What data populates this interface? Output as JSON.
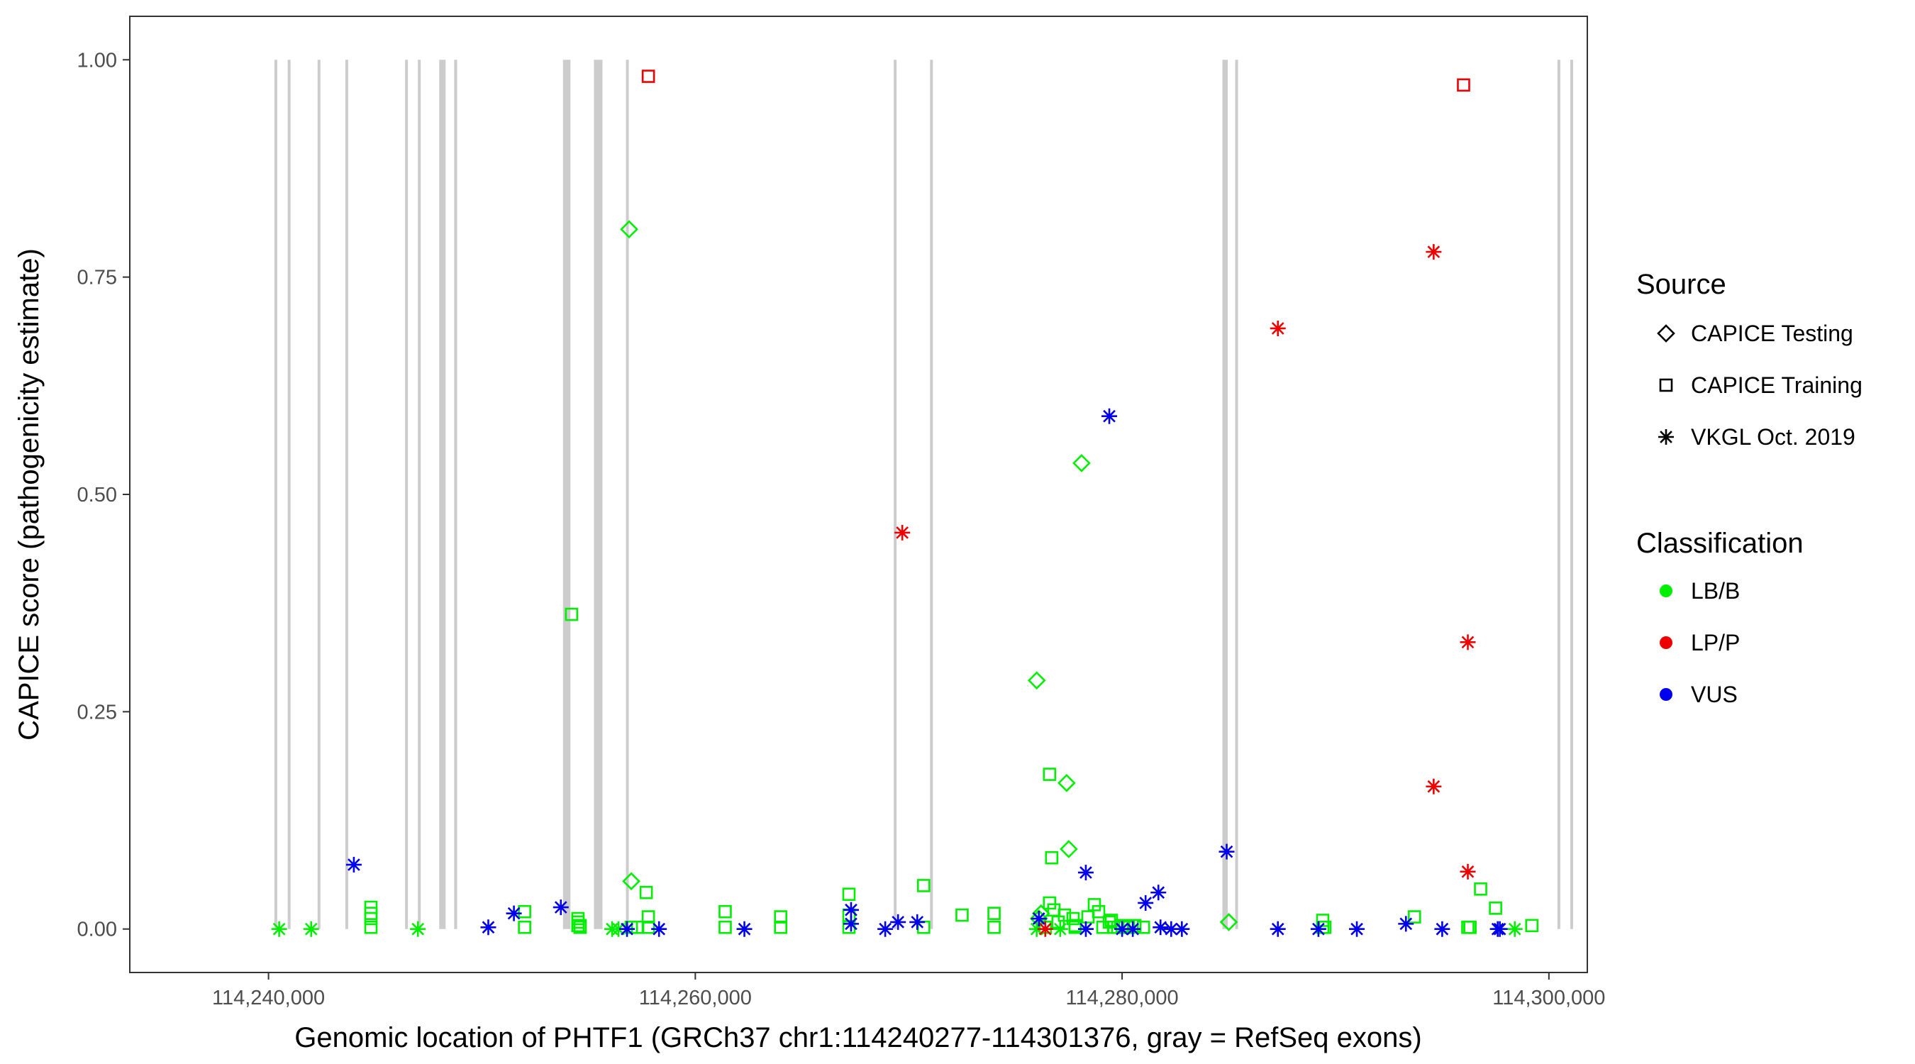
{
  "chart_data": {
    "type": "scatter",
    "title": "",
    "xlabel": "Genomic location of PHTF1 (GRCh37 chr1:114240277-114301376, gray = RefSeq exons)",
    "ylabel": "CAPICE score (pathogenicity estimate)",
    "xlim": [
      114233500,
      114301800
    ],
    "ylim": [
      -0.05,
      1.05
    ],
    "x_ticks": [
      114240000,
      114260000,
      114280000,
      114300000
    ],
    "x_tick_labels": [
      "114,240,000",
      "114,260,000",
      "114,280,000",
      "114,300,000"
    ],
    "y_ticks": [
      0,
      0.25,
      0.5,
      0.75,
      1.0
    ],
    "y_tick_labels": [
      "0.00",
      "0.25",
      "0.50",
      "0.75",
      "1.00"
    ],
    "grid": false,
    "exon_color": "#cccccc",
    "exons": [
      [
        114240277,
        114240377
      ],
      [
        114240900,
        114241000
      ],
      [
        114242300,
        114242420
      ],
      [
        114243600,
        114243720
      ],
      [
        114246400,
        114246520
      ],
      [
        114247000,
        114247120
      ],
      [
        114248000,
        114248300
      ],
      [
        114248700,
        114248840
      ],
      [
        114253800,
        114254150
      ],
      [
        114255250,
        114255650
      ],
      [
        114256750,
        114256870
      ],
      [
        114269300,
        114269420
      ],
      [
        114271000,
        114271120
      ],
      [
        114284700,
        114284950
      ],
      [
        114285300,
        114285420
      ],
      [
        114300400,
        114300520
      ],
      [
        114301000,
        114301120
      ]
    ],
    "legend_position": "right",
    "legends": {
      "source": {
        "title": "Source",
        "items": [
          {
            "label": "CAPICE Testing",
            "shape": "diamond"
          },
          {
            "label": "CAPICE Training",
            "shape": "square"
          },
          {
            "label": "VKGL Oct. 2019",
            "shape": "asterisk"
          }
        ]
      },
      "classification": {
        "title": "Classification",
        "items": [
          {
            "label": "LB/B",
            "color": "#00ee00"
          },
          {
            "label": "LP/P",
            "color": "#ee0000"
          },
          {
            "label": "VUS",
            "color": "#0000ee"
          }
        ]
      }
    },
    "series": [
      {
        "name": "CAPICE Testing / LB/B",
        "shape": "diamond",
        "color": "#00ee00",
        "x": [
          114256900,
          114276000,
          114277400,
          114277500,
          114278100,
          114276200,
          114276100,
          114285000,
          114257000
        ],
        "y": [
          0.805,
          0.286,
          0.168,
          0.092,
          0.536,
          0.018,
          0.012,
          0.008,
          0.055
        ]
      },
      {
        "name": "CAPICE Training / LB/B",
        "shape": "square",
        "color": "#00ee00",
        "x": [
          114244800,
          114244800,
          114244800,
          114244800,
          114252000,
          114252000,
          114254500,
          114254500,
          114254500,
          114254600,
          114254600,
          114257700,
          114257800,
          114257800,
          114257000,
          114257300,
          114261400,
          114261400,
          114264000,
          114264000,
          114267200,
          114267200,
          114267200,
          114270700,
          114270700,
          114272500,
          114274000,
          114274000,
          114276600,
          114276600,
          114276700,
          114276800,
          114277000,
          114277300,
          114277700,
          114277800,
          114277800,
          114278400,
          114278700,
          114278900,
          114279100,
          114279400,
          114279500,
          114279600,
          114279800,
          114280000,
          114280300,
          114280600,
          114276400,
          114281000,
          114254200,
          114289400,
          114289500,
          114296800,
          114296200,
          114297500,
          114296300,
          114296300,
          114299200,
          114276400,
          114293700,
          114289400
        ],
        "y": [
          0.025,
          0.018,
          0.012,
          0.002,
          0.02,
          0.002,
          0.012,
          0.008,
          0.004,
          0.004,
          0.002,
          0.042,
          0.014,
          0.002,
          0.002,
          0.002,
          0.02,
          0.002,
          0.014,
          0.002,
          0.04,
          0.016,
          0.002,
          0.05,
          0.002,
          0.016,
          0.018,
          0.002,
          0.178,
          0.03,
          0.082,
          0.022,
          0.008,
          0.016,
          0.012,
          0.004,
          0.002,
          0.014,
          0.028,
          0.02,
          0.002,
          0.008,
          0.01,
          0.002,
          0.002,
          0.004,
          0.002,
          0.004,
          0.002,
          0.002,
          0.362,
          0.01,
          0.002,
          0.046,
          0.002,
          0.024,
          0.002,
          0.002,
          0.004,
          0.002,
          0.014,
          0.002
        ]
      },
      {
        "name": "CAPICE Training / LP/P",
        "shape": "square",
        "color": "#ee0000",
        "x": [
          114257800,
          114296000
        ],
        "y": [
          0.981,
          0.971
        ]
      },
      {
        "name": "VKGL Oct. 2019 / LB/B",
        "shape": "asterisk",
        "color": "#00ee00",
        "x": [
          114240500,
          114242000,
          114247000,
          114256100,
          114256400,
          114276000,
          114277100,
          114298400
        ],
        "y": [
          0.0,
          0.0,
          0.0,
          0.0,
          0.0,
          0.0,
          0.0,
          0.0
        ]
      },
      {
        "name": "VKGL Oct. 2019 / LP/P",
        "shape": "asterisk",
        "color": "#ee0000",
        "x": [
          114269700,
          114287300,
          114294600,
          114294600,
          114296200,
          114296200,
          114276400
        ],
        "y": [
          0.456,
          0.691,
          0.779,
          0.164,
          0.33,
          0.066,
          0.0
        ]
      },
      {
        "name": "VKGL Oct. 2019 / VUS",
        "shape": "asterisk",
        "color": "#0000ee",
        "x": [
          114244000,
          114250300,
          114251500,
          114253700,
          114256800,
          114258300,
          114262300,
          114267300,
          114267300,
          114268900,
          114269500,
          114270400,
          114276100,
          114278300,
          114278300,
          114279400,
          114280000,
          114280500,
          114281100,
          114281700,
          114282300,
          114282800,
          114284900,
          114287300,
          114289200,
          114291000,
          114293300,
          114295000,
          114297600,
          114297700,
          114281800
        ],
        "y": [
          0.074,
          0.002,
          0.018,
          0.025,
          0.0,
          0.0,
          0.0,
          0.022,
          0.006,
          0.0,
          0.008,
          0.008,
          0.012,
          0.065,
          0.0,
          0.59,
          0.0,
          0.0,
          0.03,
          0.042,
          0.0,
          0.0,
          0.089,
          0.0,
          0.0,
          0.0,
          0.006,
          0.0,
          0.0,
          0.0,
          0.002
        ]
      }
    ]
  }
}
